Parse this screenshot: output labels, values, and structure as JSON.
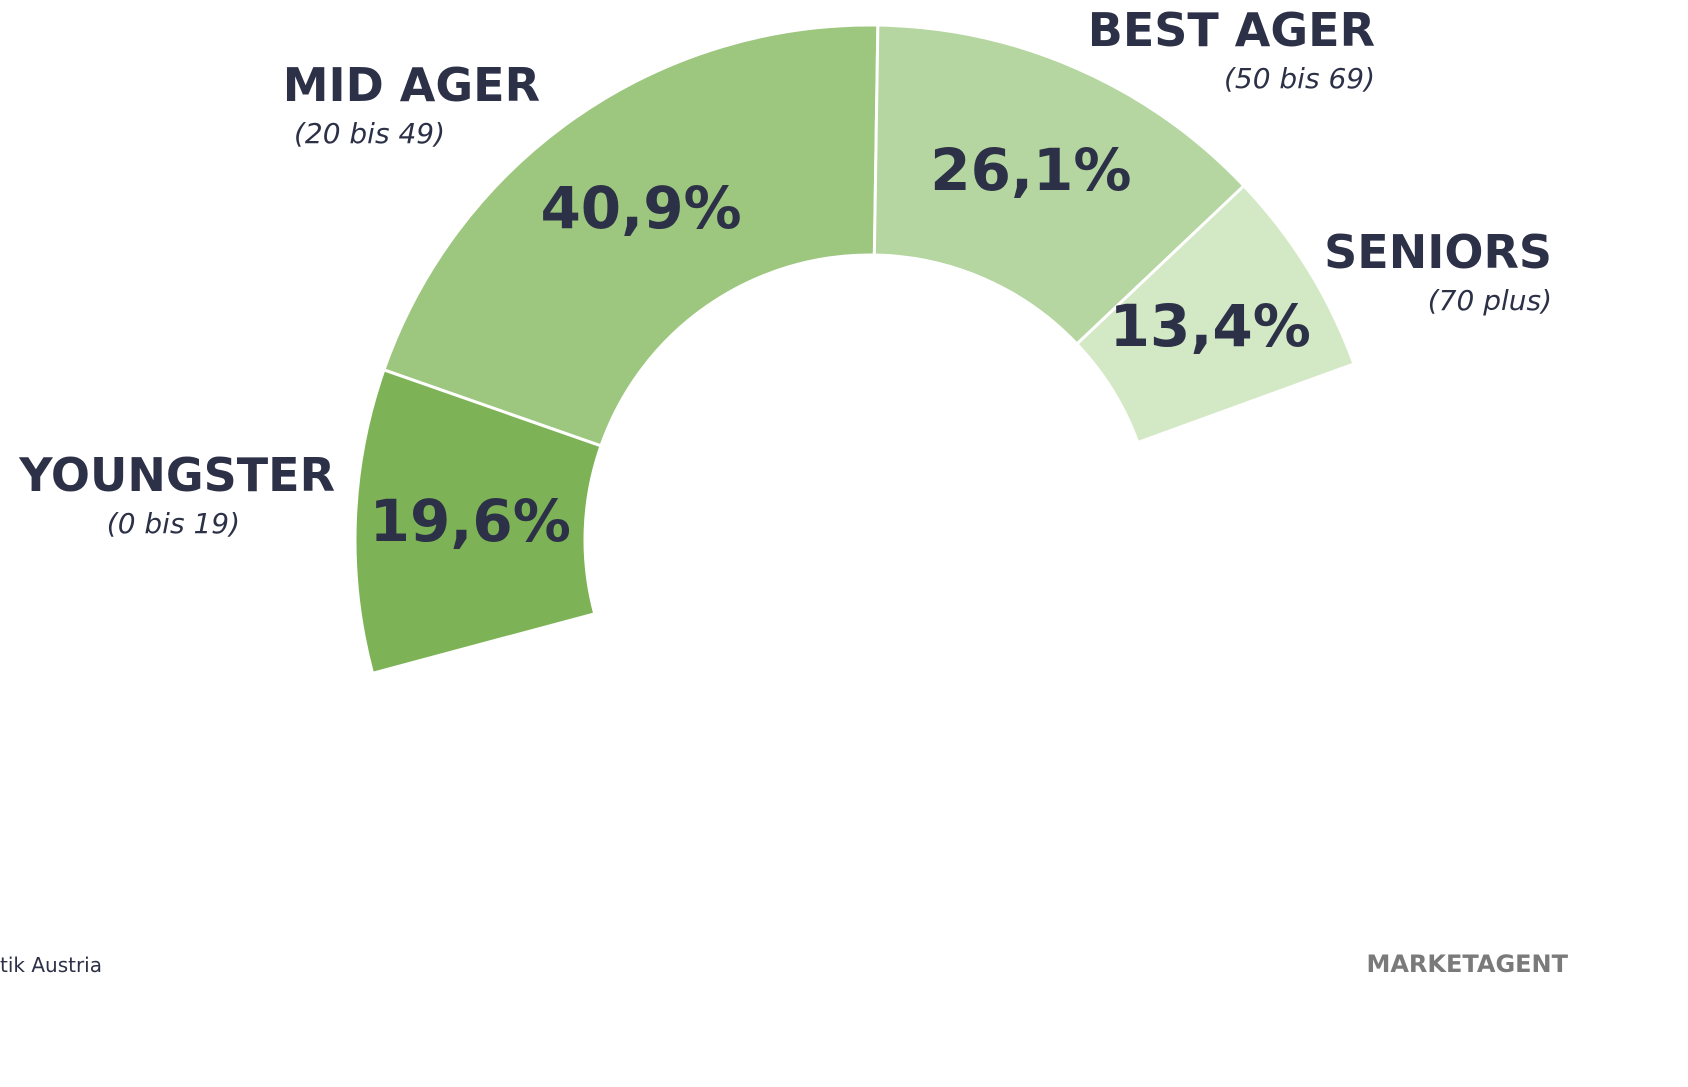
{
  "chart_data": {
    "type": "pie",
    "categories": [
      "YOUNGSTER",
      "MID AGER",
      "BEST AGER",
      "SENIORS"
    ],
    "age_ranges": [
      "(0 bis 19)",
      "(20 bis 49)",
      "(50 bis 69)",
      "(70 plus)"
    ],
    "values": [
      19.6,
      40.9,
      26.1,
      13.4
    ],
    "value_labels": [
      "19,6%",
      "40,9%",
      "26,1%",
      "13,4%"
    ],
    "colors": [
      "#7db356",
      "#9dc67e",
      "#b5d6a0",
      "#d3e8c5"
    ],
    "source": "tik Austria",
    "brand": "MARKETAGENT"
  }
}
